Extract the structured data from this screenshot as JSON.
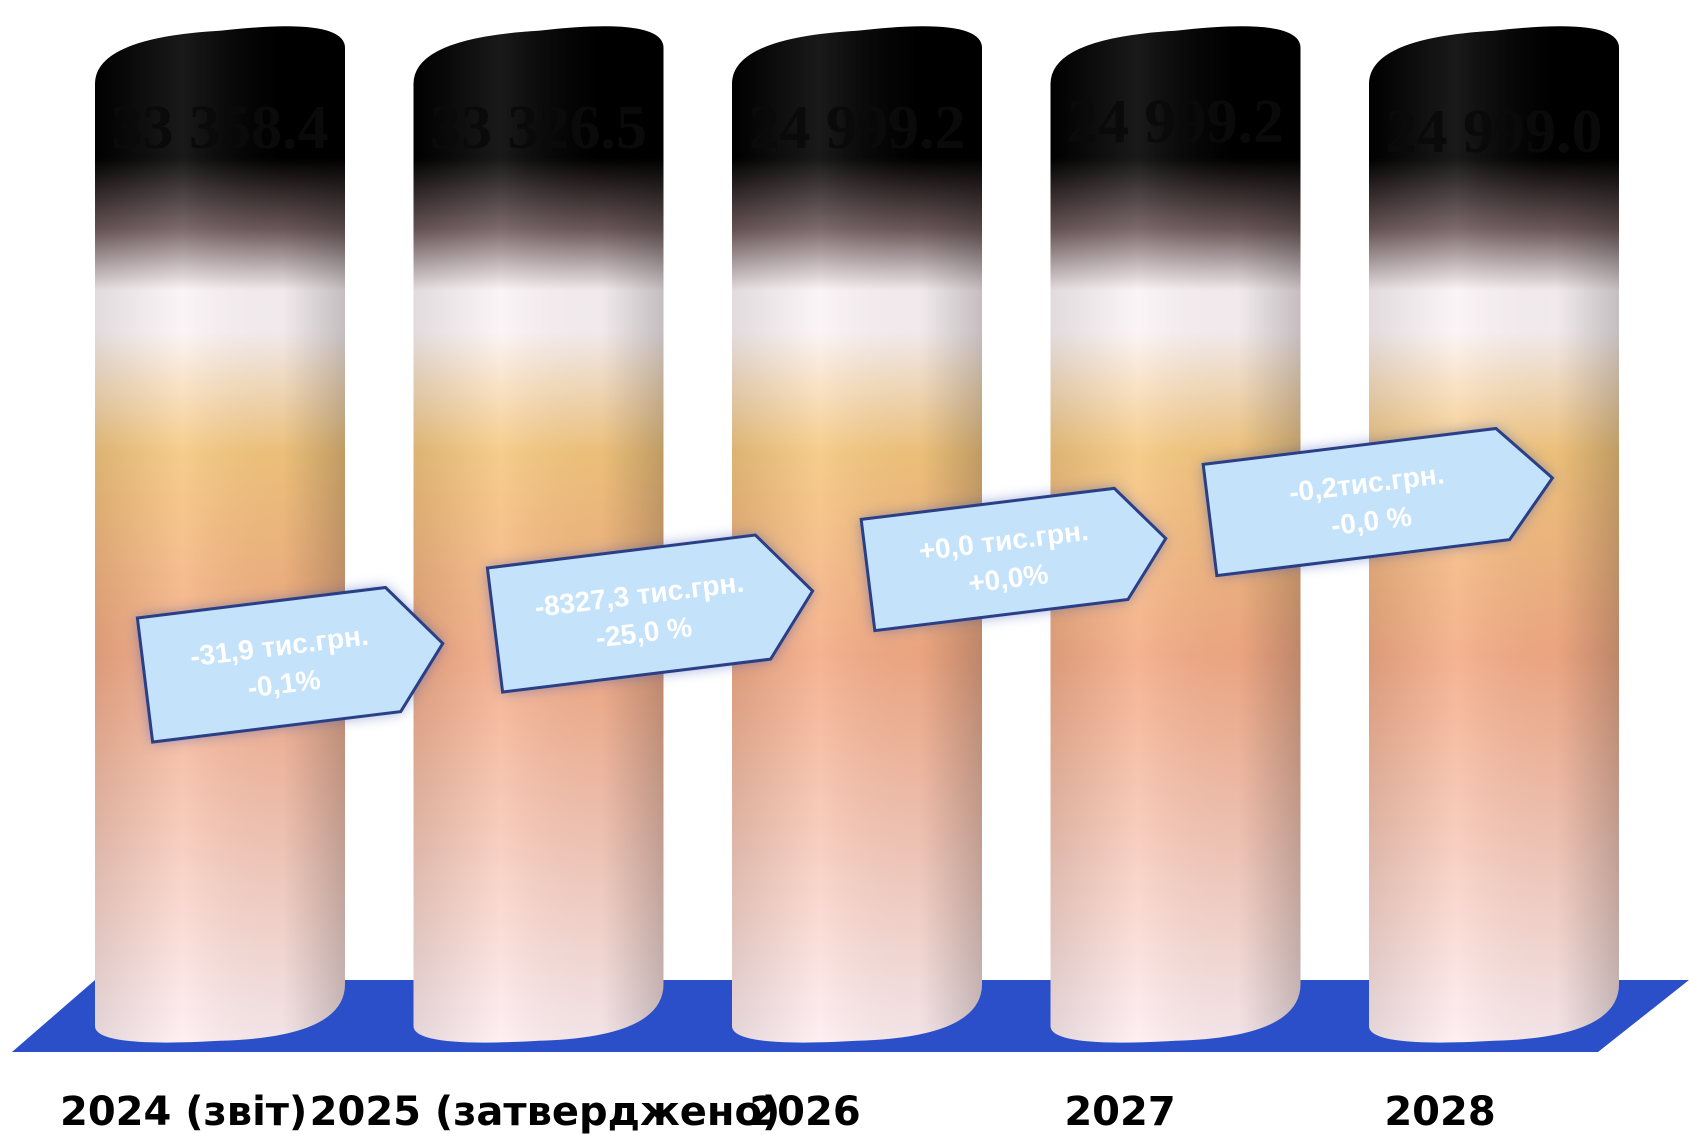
{
  "chart_data": {
    "type": "bar",
    "categories": [
      "2024 (звіт)",
      "2025 (затверджено)",
      "2026",
      "2027",
      "2028"
    ],
    "values": [
      33358.4,
      33326.5,
      24999.2,
      24999.2,
      24999.0
    ],
    "value_labels": [
      "33 358.4",
      "33 326.5",
      "24 999.2",
      "24 999.2",
      "24 999.0"
    ],
    "changes": [
      {
        "line1": "-31,9 тис.грн.",
        "line2": "-0,1%"
      },
      {
        "line1": "-8327,3 тис.грн.",
        "line2": "-25,0 %"
      },
      {
        "line1": "+0,0 тис.грн.",
        "line2": "+0,0%"
      },
      {
        "line1": "-0,2тис.грн.",
        "line2": "-0,0 %"
      }
    ],
    "title": "",
    "xlabel": "",
    "ylabel": "",
    "grid": false,
    "colors": {
      "floor": "#2a4fc8",
      "arrow_fill": "#c4e2fa",
      "arrow_stroke": "#2b3f86",
      "column_top": "#000000",
      "column_band_light": "#fbf3f6",
      "column_band_gold": "#f5c77e",
      "column_band_peach": "#f4ab86",
      "column_bottom": "#fdeef2"
    }
  }
}
